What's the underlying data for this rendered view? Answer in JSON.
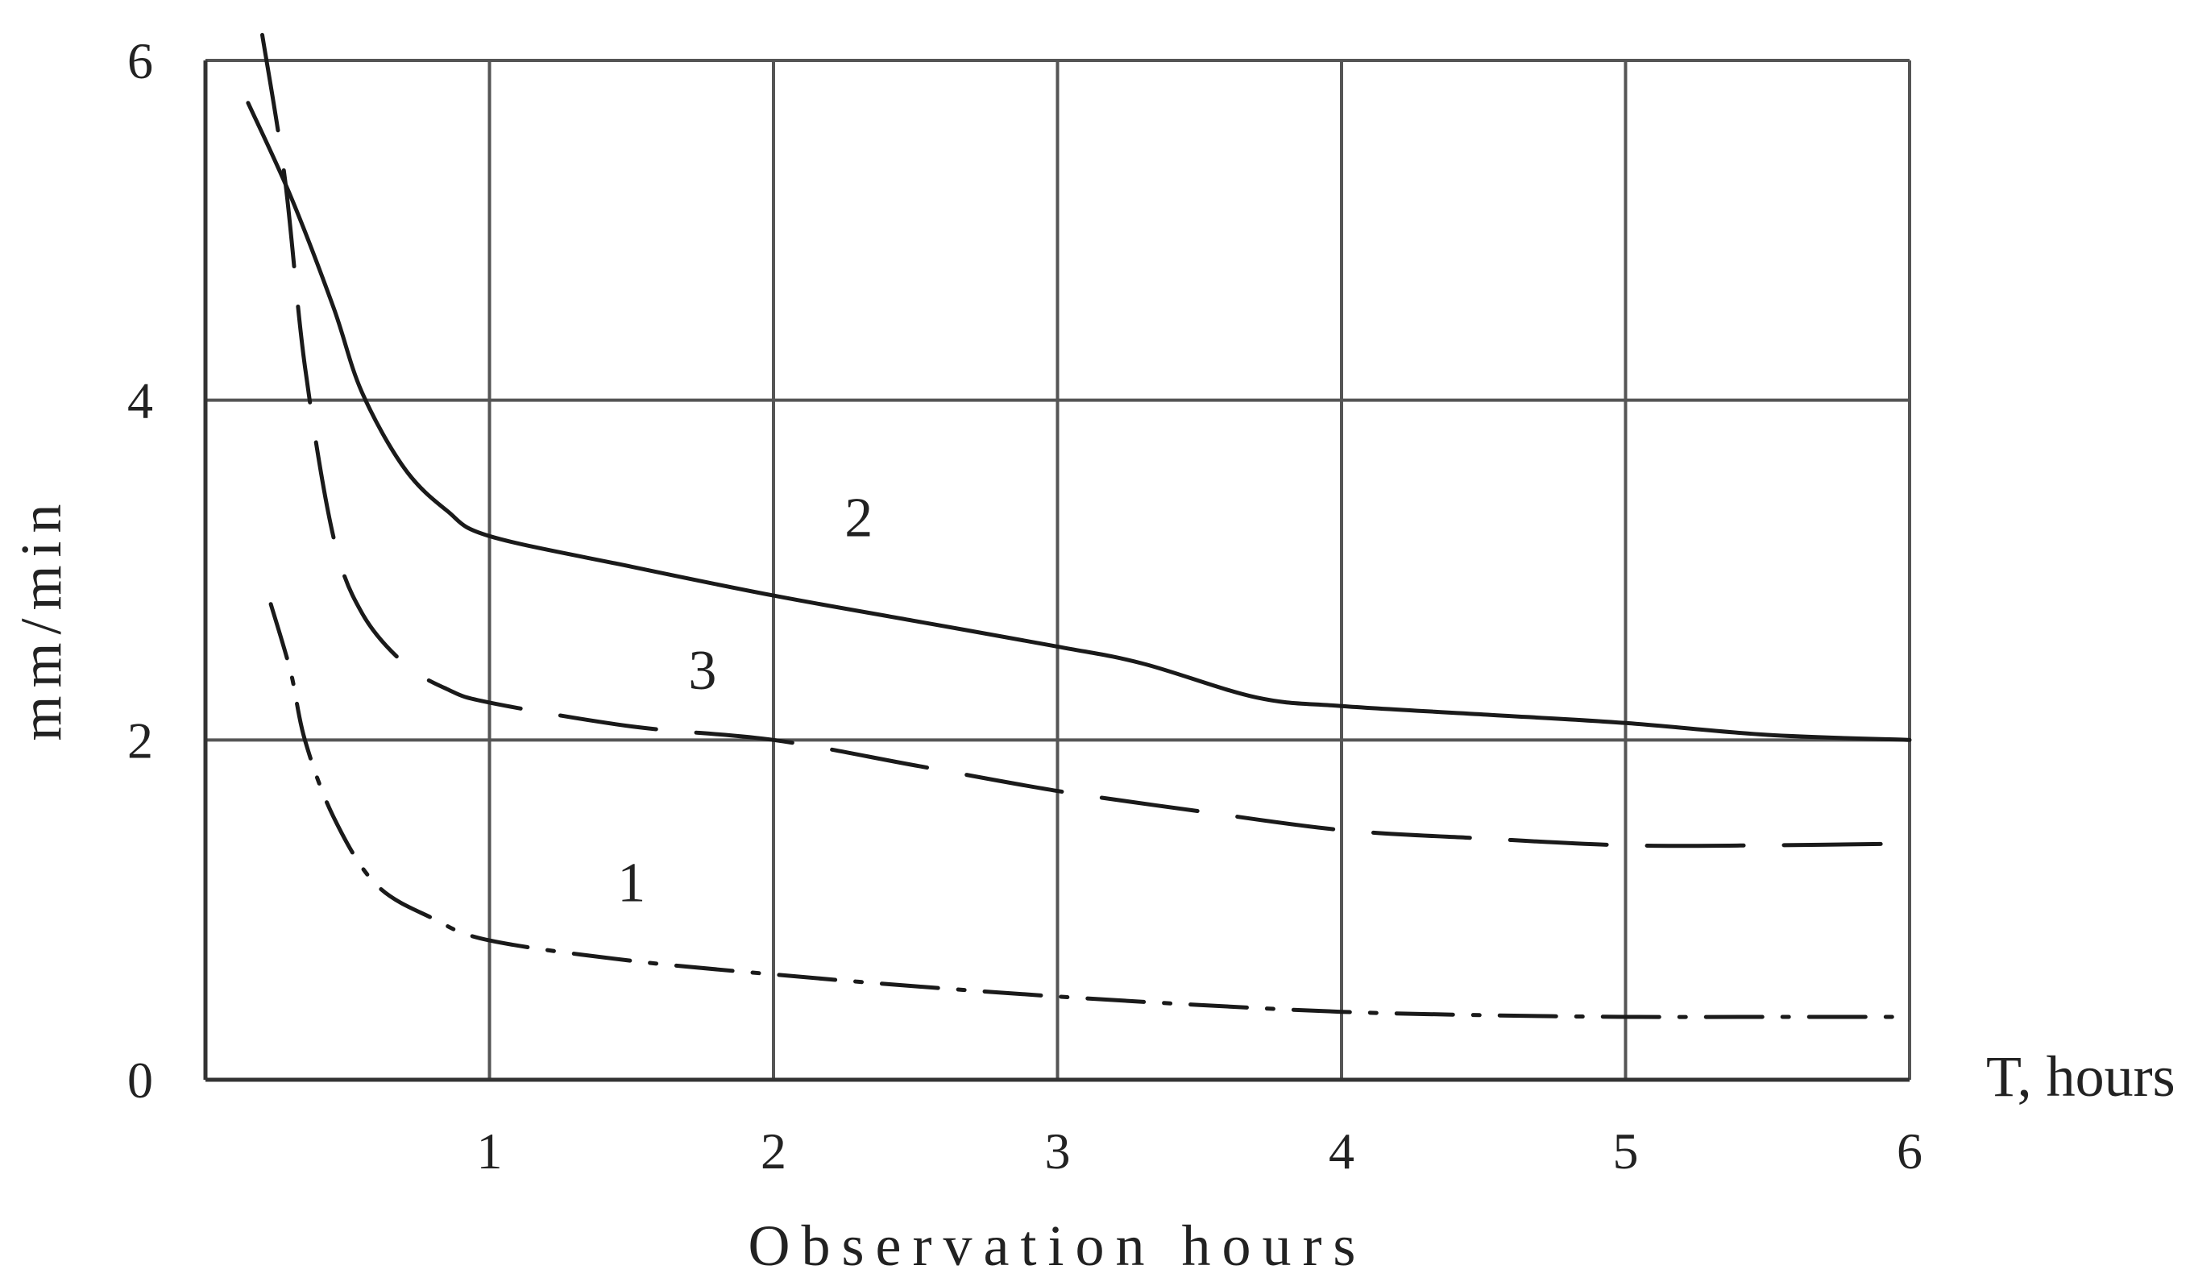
{
  "chart_data": {
    "type": "line",
    "title": "",
    "xlabel": "Observation hours",
    "x_axis_end_label": "T, hours",
    "ylabel": "mm/min",
    "xlim": [
      0,
      6
    ],
    "ylim": [
      0,
      6
    ],
    "x_ticks": [
      1,
      2,
      3,
      4,
      5,
      6
    ],
    "y_ticks": [
      0,
      2,
      4,
      6
    ],
    "grid": true,
    "legend": "none",
    "series": [
      {
        "name": "1",
        "style": "dash-dot",
        "label_at": [
          1.5,
          1.05
        ],
        "x": [
          0.23,
          0.3,
          0.35,
          0.45,
          0.6,
          0.8,
          1.0,
          1.5,
          2.0,
          2.5,
          3.0,
          3.5,
          4.0,
          4.5,
          5.0,
          5.5,
          6.0
        ],
        "y": [
          2.8,
          2.4,
          2.0,
          1.55,
          1.15,
          0.95,
          0.82,
          0.7,
          0.62,
          0.55,
          0.49,
          0.44,
          0.4,
          0.38,
          0.37,
          0.37,
          0.37
        ]
      },
      {
        "name": "2",
        "style": "solid",
        "label_at": [
          2.3,
          3.2
        ],
        "x": [
          0.15,
          0.3,
          0.45,
          0.55,
          0.7,
          0.85,
          1.0,
          1.5,
          2.0,
          2.5,
          3.0,
          3.3,
          3.7,
          4.0,
          4.5,
          5.0,
          5.5,
          6.0
        ],
        "y": [
          5.75,
          5.2,
          4.55,
          4.05,
          3.6,
          3.35,
          3.2,
          3.02,
          2.85,
          2.7,
          2.55,
          2.45,
          2.25,
          2.2,
          2.15,
          2.1,
          2.03,
          2.0
        ]
      },
      {
        "name": "3",
        "style": "dashed",
        "label_at": [
          1.75,
          2.3
        ],
        "x": [
          0.2,
          0.28,
          0.35,
          0.45,
          0.55,
          0.7,
          0.85,
          1.0,
          1.5,
          2.0,
          2.5,
          3.0,
          3.5,
          4.0,
          4.5,
          5.0,
          5.5,
          6.0
        ],
        "y": [
          6.15,
          5.3,
          4.2,
          3.2,
          2.75,
          2.45,
          2.3,
          2.22,
          2.08,
          2.0,
          1.85,
          1.7,
          1.58,
          1.47,
          1.42,
          1.38,
          1.38,
          1.39
        ]
      }
    ]
  }
}
